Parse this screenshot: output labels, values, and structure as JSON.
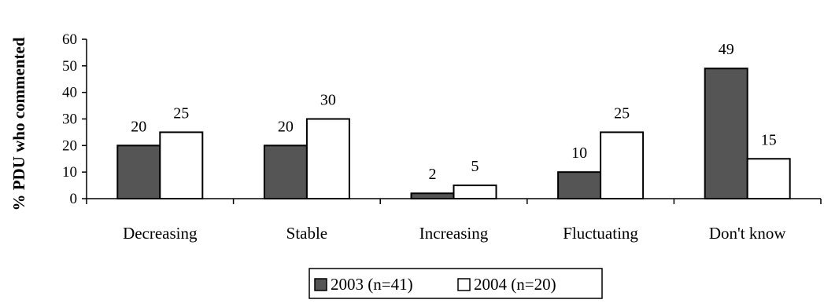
{
  "chart_data": {
    "type": "bar",
    "title": "",
    "xlabel": "",
    "ylabel": "% PDU who commented",
    "ylim": [
      0,
      60
    ],
    "yticks": [
      0,
      10,
      20,
      30,
      40,
      50,
      60
    ],
    "categories": [
      "Decreasing",
      "Stable",
      "Increasing",
      "Fluctuating",
      "Don't know"
    ],
    "series": [
      {
        "name": "2003 (n=41)",
        "values": [
          20,
          20,
          2,
          10,
          49
        ],
        "color": "#555555"
      },
      {
        "name": "2004 (n=20)",
        "values": [
          25,
          30,
          5,
          25,
          15
        ],
        "color": "#ffffff"
      }
    ],
    "grid": false,
    "legend_position": "bottom"
  }
}
